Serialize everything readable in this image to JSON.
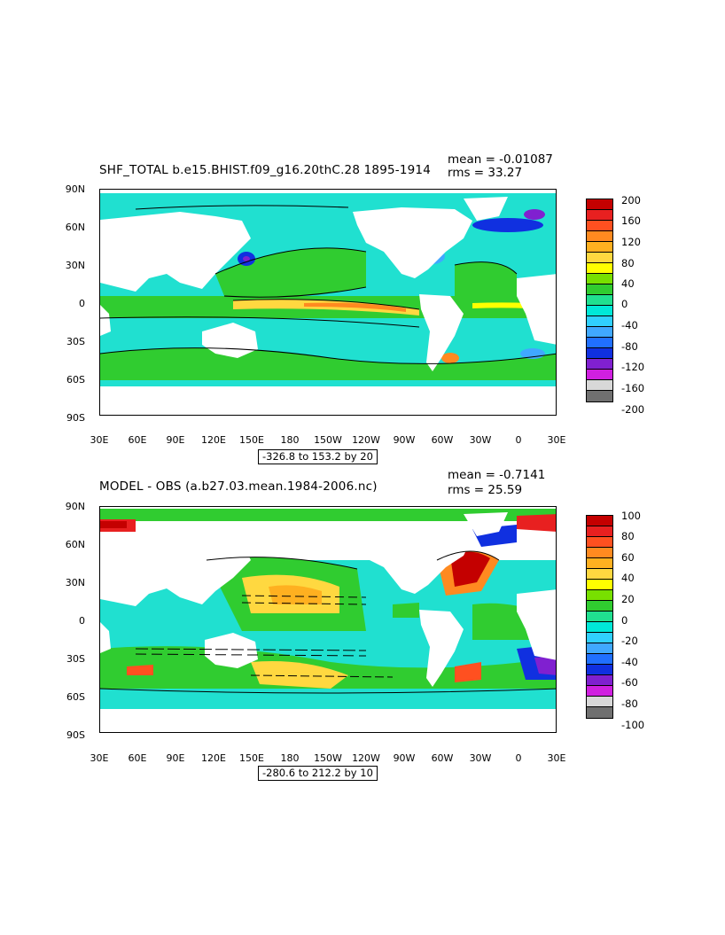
{
  "panels": [
    {
      "title": "SHF_TOTAL b.e15.BHIST.f09_g16.20thC.28  1895-1914",
      "mean_text": "mean = -0.01087",
      "rms_text": "rms = 33.27",
      "range_text": "-326.8 to 153.2 by 20",
      "lat_labels": [
        "90N",
        "60N",
        "30N",
        "0",
        "30S",
        "60S",
        "90S"
      ],
      "lon_labels": [
        "30E",
        "60E",
        "90E",
        "120E",
        "150E",
        "180",
        "150W",
        "120W",
        "90W",
        "60W",
        "30W",
        "0",
        "30E"
      ],
      "colorbar_labels": [
        "200",
        "160",
        "120",
        "80",
        "40",
        "0",
        "-40",
        "-80",
        "-120",
        "-160",
        "-200"
      ],
      "colorbar_colors": [
        "#c40000",
        "#e82020",
        "#ff5020",
        "#ff8a20",
        "#ffb020",
        "#ffd840",
        "#ffff00",
        "#78e000",
        "#30cc30",
        "#20e090",
        "#00e8d8",
        "#30d0ff",
        "#40a8ff",
        "#2070ff",
        "#1030e0",
        "#8020d0",
        "#d020e0",
        "#d8d8d8",
        "#707070"
      ]
    },
    {
      "title": "MODEL - OBS (a.b27.03.mean.1984-2006.nc)",
      "mean_text": "mean = -0.7141",
      "rms_text": "rms = 25.59",
      "range_text": "-280.6 to 212.2 by 10",
      "lat_labels": [
        "90N",
        "60N",
        "30N",
        "0",
        "30S",
        "60S",
        "90S"
      ],
      "lon_labels": [
        "30E",
        "60E",
        "90E",
        "120E",
        "150E",
        "180",
        "150W",
        "120W",
        "90W",
        "60W",
        "30W",
        "0",
        "30E"
      ],
      "colorbar_labels": [
        "100",
        "80",
        "60",
        "40",
        "20",
        "0",
        "-20",
        "-40",
        "-60",
        "-80",
        "-100"
      ],
      "colorbar_colors": [
        "#c40000",
        "#e82020",
        "#ff5020",
        "#ff8a20",
        "#ffb020",
        "#ffd840",
        "#ffff00",
        "#78e000",
        "#30cc30",
        "#20e090",
        "#00e8d8",
        "#30d0ff",
        "#40a8ff",
        "#2070ff",
        "#1030e0",
        "#8020d0",
        "#d020e0",
        "#d8d8d8",
        "#707070"
      ]
    }
  ]
}
